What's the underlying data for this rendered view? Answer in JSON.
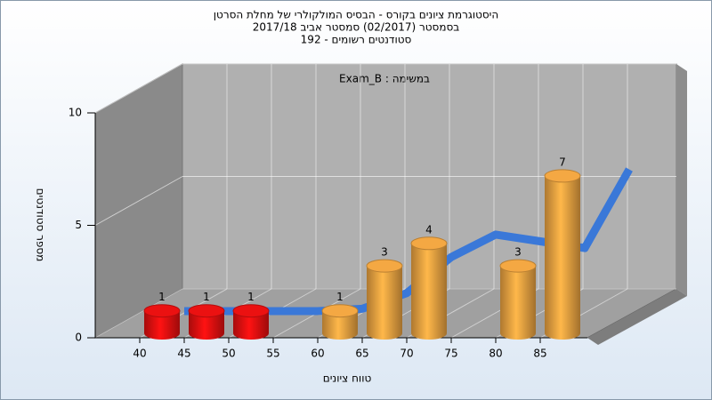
{
  "chart_data": {
    "type": "histogram",
    "title": [
      "היסטוגרמת ציונים בקורס - הבסיס המולקולרי של מחלת הסרטן",
      "בסמסטר  (02/2017)  סמסטר אביב 2017/18",
      "סטודנטים רשומים - 192"
    ],
    "annotation": "במשימה : Exam_B",
    "x_label": "טווח ציונים",
    "y_label": "מספר סטודנטים",
    "bins": [
      40,
      45,
      50,
      55,
      60,
      65,
      70,
      75,
      80,
      85,
      90
    ],
    "values": [
      1,
      1,
      1,
      0,
      1,
      3,
      4,
      0,
      3,
      7
    ],
    "colors": [
      "#e01010",
      "#e01010",
      "#e01010",
      "#e8a040",
      "#e8a040",
      "#e8a040",
      "#e8a040",
      "#e8a040",
      "#e8a040",
      "#e8a040"
    ],
    "xlim": [
      40,
      90
    ],
    "xticks": [
      40,
      45,
      50,
      55,
      60,
      65,
      70,
      75,
      80,
      85
    ],
    "ylim": [
      0,
      10
    ],
    "yticks": [
      0,
      5,
      10
    ],
    "grid": true,
    "curve": {
      "x": [
        40,
        45,
        50,
        55,
        60,
        65,
        70,
        75,
        80,
        85,
        90
      ],
      "values": [
        0.2,
        0.2,
        0.2,
        0.2,
        0.3,
        1.0,
        2.6,
        3.6,
        3.3,
        3.0,
        6.5
      ],
      "color": "#3a78d8"
    }
  }
}
